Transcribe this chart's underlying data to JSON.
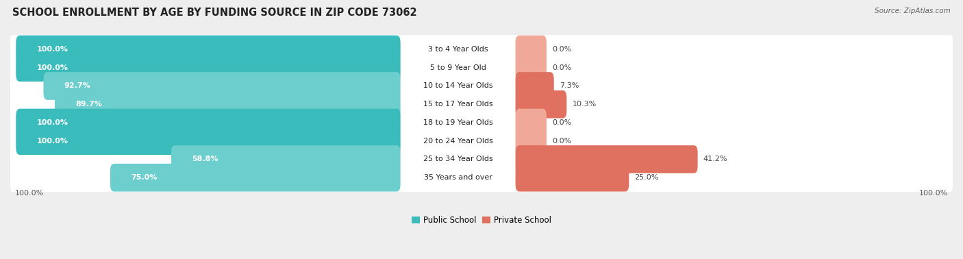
{
  "title": "SCHOOL ENROLLMENT BY AGE BY FUNDING SOURCE IN ZIP CODE 73062",
  "source": "Source: ZipAtlas.com",
  "categories": [
    "3 to 4 Year Olds",
    "5 to 9 Year Old",
    "10 to 14 Year Olds",
    "15 to 17 Year Olds",
    "18 to 19 Year Olds",
    "20 to 24 Year Olds",
    "25 to 34 Year Olds",
    "35 Years and over"
  ],
  "public_values": [
    100.0,
    100.0,
    92.7,
    89.7,
    100.0,
    100.0,
    58.8,
    75.0
  ],
  "private_values": [
    0.0,
    0.0,
    7.3,
    10.3,
    0.0,
    0.0,
    41.2,
    25.0
  ],
  "public_color_full": "#3BBCBC",
  "public_color_partial": "#6DCECE",
  "private_color_full": "#E07060",
  "private_color_zero": "#F0A898",
  "bg_color": "#EEEEEE",
  "row_bg": "#FFFFFF",
  "title_fontsize": 10.5,
  "label_fontsize": 8.0,
  "bar_label_fontsize": 8.0,
  "legend_fontsize": 8.5,
  "axis_label_fontsize": 8.0,
  "left_axis_label": "100.0%",
  "right_axis_label": "100.0%"
}
